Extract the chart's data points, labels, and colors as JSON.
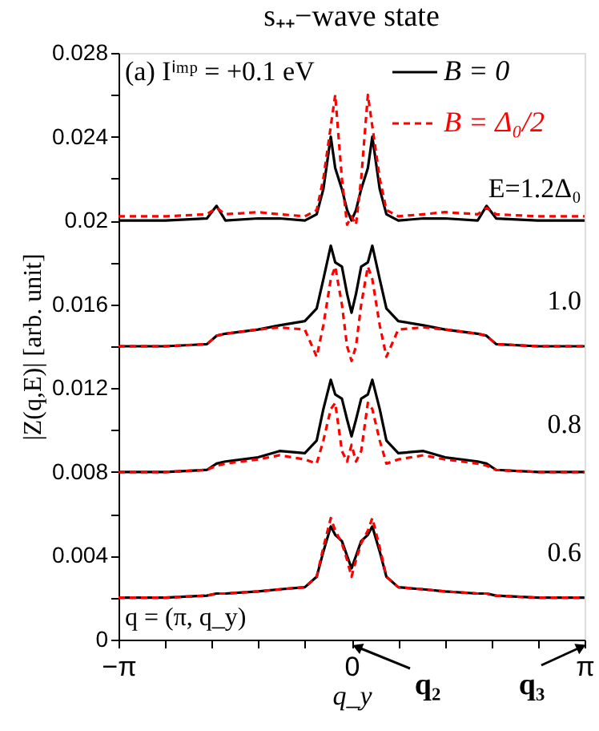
{
  "chart_data": {
    "type": "line",
    "title": "s₊₊−wave state",
    "xlabel": "q_y",
    "ylabel": "|Z(q,E)| [arb. unit]",
    "x": [
      -3.1416,
      -2.51,
      -1.95,
      -1.82,
      -1.7,
      -1.26,
      -0.97,
      -0.63,
      -0.47,
      -0.38,
      -0.28,
      -0.22,
      -0.13,
      -0.06,
      0,
      0.06,
      0.13,
      0.22,
      0.28,
      0.38,
      0.47,
      0.63,
      0.97,
      1.26,
      1.7,
      1.82,
      1.95,
      2.51,
      3.1416
    ],
    "series": [
      {
        "name": "B = 0",
        "color": "#000000",
        "line_style": "solid",
        "values": [
          0.02,
          0.02,
          0.0201,
          0.0207,
          0.02,
          0.0201,
          0.0201,
          0.02,
          0.0203,
          0.0215,
          0.024,
          0.0225,
          0.0215,
          0.0205,
          0.02,
          0.0205,
          0.0215,
          0.0225,
          0.024,
          0.0215,
          0.0203,
          0.02,
          0.0201,
          0.0201,
          0.02,
          0.0207,
          0.0201,
          0.02,
          0.02
        ]
      },
      {
        "name": "B = Δ₀/2",
        "color": "#ff0000",
        "line_style": "dashed",
        "values": [
          0.0202,
          0.0202,
          0.0203,
          0.0206,
          0.0203,
          0.0204,
          0.0203,
          0.0202,
          0.0205,
          0.022,
          0.0245,
          0.026,
          0.022,
          0.0198,
          0.0202,
          0.0198,
          0.022,
          0.026,
          0.0245,
          0.022,
          0.0205,
          0.0202,
          0.0203,
          0.0204,
          0.0203,
          0.0206,
          0.0203,
          0.0202,
          0.0202
        ]
      },
      {
        "color": "#000000",
        "line_style": "solid",
        "values": [
          0.014,
          0.014,
          0.0141,
          0.0145,
          0.0146,
          0.0148,
          0.015,
          0.0152,
          0.0158,
          0.0172,
          0.0188,
          0.018,
          0.0178,
          0.0165,
          0.0156,
          0.0165,
          0.0178,
          0.018,
          0.0188,
          0.0172,
          0.0158,
          0.0152,
          0.015,
          0.0148,
          0.0146,
          0.0145,
          0.0141,
          0.014,
          0.014
        ]
      },
      {
        "color": "#ff0000",
        "line_style": "dashed",
        "values": [
          0.014,
          0.014,
          0.0141,
          0.0145,
          0.0146,
          0.0148,
          0.0149,
          0.0148,
          0.0135,
          0.015,
          0.0172,
          0.0178,
          0.016,
          0.014,
          0.0133,
          0.014,
          0.016,
          0.0178,
          0.0172,
          0.015,
          0.0135,
          0.0148,
          0.0149,
          0.0148,
          0.0146,
          0.0145,
          0.0141,
          0.014,
          0.014
        ]
      },
      {
        "color": "#000000",
        "line_style": "solid",
        "values": [
          0.008,
          0.008,
          0.0081,
          0.0084,
          0.0085,
          0.0087,
          0.009,
          0.0089,
          0.0095,
          0.011,
          0.0124,
          0.0117,
          0.0115,
          0.0105,
          0.0097,
          0.0105,
          0.0115,
          0.0117,
          0.0124,
          0.011,
          0.0095,
          0.0089,
          0.009,
          0.0087,
          0.0085,
          0.0084,
          0.0081,
          0.008,
          0.008
        ]
      },
      {
        "color": "#ff0000",
        "line_style": "dashed",
        "values": [
          0.008,
          0.008,
          0.0081,
          0.0083,
          0.0084,
          0.0086,
          0.0088,
          0.0086,
          0.0084,
          0.0095,
          0.011,
          0.0113,
          0.009,
          0.0085,
          0.0093,
          0.0085,
          0.009,
          0.0113,
          0.011,
          0.0095,
          0.0084,
          0.0086,
          0.0088,
          0.0086,
          0.0084,
          0.0083,
          0.0081,
          0.008,
          0.008
        ]
      },
      {
        "color": "#000000",
        "line_style": "solid",
        "values": [
          0.002,
          0.002,
          0.0021,
          0.0022,
          0.0022,
          0.0023,
          0.0024,
          0.0025,
          0.003,
          0.0042,
          0.0054,
          0.005,
          0.0047,
          0.004,
          0.0034,
          0.004,
          0.0047,
          0.005,
          0.0054,
          0.0042,
          0.003,
          0.0025,
          0.0024,
          0.0023,
          0.0022,
          0.0022,
          0.0021,
          0.002,
          0.002
        ]
      },
      {
        "color": "#ff0000",
        "line_style": "dashed",
        "values": [
          0.002,
          0.002,
          0.0021,
          0.0022,
          0.0022,
          0.0023,
          0.0024,
          0.0025,
          0.003,
          0.0044,
          0.0058,
          0.0052,
          0.0046,
          0.0038,
          0.003,
          0.0038,
          0.0046,
          0.0052,
          0.0058,
          0.0044,
          0.003,
          0.0025,
          0.0024,
          0.0023,
          0.0022,
          0.0022,
          0.0021,
          0.002,
          0.002
        ]
      }
    ],
    "xlim": [
      -3.1416,
      3.1416
    ],
    "xticks": [
      {
        "value": -3.1416,
        "label": "−π"
      },
      {
        "value": -2.5133,
        "label": null
      },
      {
        "value": -1.885,
        "label": null
      },
      {
        "value": -1.2566,
        "label": null
      },
      {
        "value": -0.6283,
        "label": null
      },
      0,
      {
        "value": 0.6283,
        "label": null
      },
      {
        "value": 1.2566,
        "label": null
      },
      {
        "value": 1.885,
        "label": null
      },
      {
        "value": 2.5133,
        "label": null
      },
      {
        "value": 3.1416,
        "label": "π"
      }
    ],
    "ylim": [
      0,
      0.028
    ],
    "yticks": [
      0,
      {
        "value": 0.002,
        "label": null
      },
      0.004,
      {
        "value": 0.006,
        "label": null
      },
      0.008,
      {
        "value": 0.01,
        "label": null
      },
      0.012,
      {
        "value": 0.014,
        "label": null
      },
      0.016,
      {
        "value": 0.018,
        "label": null
      },
      0.02,
      {
        "value": 0.022,
        "label": null
      },
      0.024,
      {
        "value": 0.026,
        "label": null
      },
      0.028
    ],
    "grid": false,
    "legend": "top right",
    "annotations": [
      "(a) Iⁱᵐᵖ = +0.1 eV",
      "q = (π, q_y)",
      "E=1.2Δ₀",
      "1.0",
      "0.8",
      "0.6",
      "q₂",
      "q₃"
    ]
  }
}
